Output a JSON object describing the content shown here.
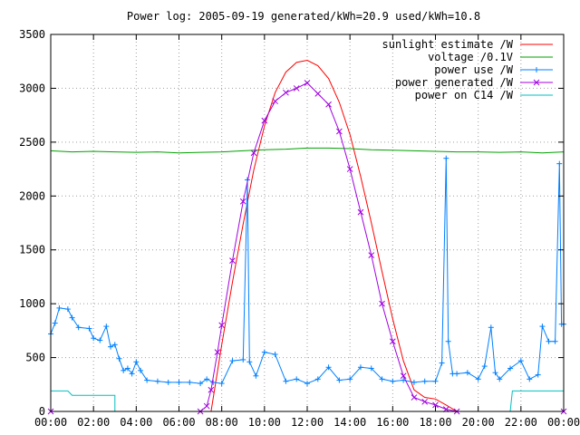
{
  "chart_data": {
    "type": "line",
    "title": "Power log: 2005-09-19 generated/kWh=20.9 used/kWh=10.8",
    "xlabel": "",
    "ylabel": "",
    "x_ticks": [
      "00:00",
      "02:00",
      "04:00",
      "06:00",
      "08:00",
      "10:00",
      "12:00",
      "14:00",
      "16:00",
      "18:00",
      "20:00",
      "22:00",
      "00:00"
    ],
    "xlim": [
      0,
      24
    ],
    "ylim": [
      0,
      3500
    ],
    "y_ticks": [
      0,
      500,
      1000,
      1500,
      2000,
      2500,
      3000,
      3500
    ],
    "grid": true,
    "legend_position": "top-right",
    "series": [
      {
        "name": "sunlight estimate /W",
        "color": "#ff0000",
        "style": "line",
        "points": [
          [
            7.5,
            0
          ],
          [
            8.0,
            620
          ],
          [
            8.5,
            1200
          ],
          [
            9.0,
            1740
          ],
          [
            9.5,
            2240
          ],
          [
            10.0,
            2650
          ],
          [
            10.5,
            2960
          ],
          [
            11.0,
            3150
          ],
          [
            11.5,
            3240
          ],
          [
            12.0,
            3260
          ],
          [
            12.5,
            3210
          ],
          [
            13.0,
            3090
          ],
          [
            13.5,
            2870
          ],
          [
            14.0,
            2570
          ],
          [
            14.5,
            2180
          ],
          [
            15.0,
            1750
          ],
          [
            15.5,
            1300
          ],
          [
            16.0,
            860
          ],
          [
            16.5,
            470
          ],
          [
            17.0,
            200
          ],
          [
            17.5,
            130
          ],
          [
            18.0,
            115
          ],
          [
            18.5,
            60
          ],
          [
            19.0,
            0
          ]
        ]
      },
      {
        "name": "voltage /0.1V",
        "color": "#00a000",
        "style": "line",
        "points": [
          [
            0.0,
            2420
          ],
          [
            1.0,
            2410
          ],
          [
            2.0,
            2415
          ],
          [
            3.0,
            2410
          ],
          [
            4.0,
            2405
          ],
          [
            5.0,
            2410
          ],
          [
            6.0,
            2400
          ],
          [
            7.0,
            2405
          ],
          [
            8.0,
            2410
          ],
          [
            9.0,
            2420
          ],
          [
            10.0,
            2430
          ],
          [
            11.0,
            2435
          ],
          [
            12.0,
            2445
          ],
          [
            13.0,
            2445
          ],
          [
            14.0,
            2440
          ],
          [
            15.0,
            2430
          ],
          [
            16.0,
            2425
          ],
          [
            17.0,
            2420
          ],
          [
            18.0,
            2415
          ],
          [
            19.0,
            2410
          ],
          [
            20.0,
            2410
          ],
          [
            21.0,
            2405
          ],
          [
            22.0,
            2410
          ],
          [
            23.0,
            2400
          ],
          [
            24.0,
            2410
          ]
        ]
      },
      {
        "name": "power use /W",
        "color": "#0080ff",
        "style": "linepoints-plus",
        "points": [
          [
            0.0,
            720
          ],
          [
            0.2,
            820
          ],
          [
            0.4,
            960
          ],
          [
            0.8,
            950
          ],
          [
            1.0,
            870
          ],
          [
            1.3,
            780
          ],
          [
            1.8,
            770
          ],
          [
            2.0,
            680
          ],
          [
            2.3,
            660
          ],
          [
            2.6,
            790
          ],
          [
            2.8,
            600
          ],
          [
            3.0,
            620
          ],
          [
            3.2,
            490
          ],
          [
            3.4,
            380
          ],
          [
            3.6,
            400
          ],
          [
            3.8,
            350
          ],
          [
            4.0,
            460
          ],
          [
            4.2,
            380
          ],
          [
            4.5,
            290
          ],
          [
            5.0,
            280
          ],
          [
            5.5,
            270
          ],
          [
            6.0,
            270
          ],
          [
            6.5,
            270
          ],
          [
            7.0,
            260
          ],
          [
            7.3,
            300
          ],
          [
            7.6,
            270
          ],
          [
            8.0,
            260
          ],
          [
            8.5,
            470
          ],
          [
            9.0,
            480
          ],
          [
            9.2,
            2150
          ],
          [
            9.3,
            460
          ],
          [
            9.6,
            330
          ],
          [
            10.0,
            550
          ],
          [
            10.5,
            530
          ],
          [
            11.0,
            280
          ],
          [
            11.5,
            300
          ],
          [
            12.0,
            260
          ],
          [
            12.5,
            300
          ],
          [
            13.0,
            410
          ],
          [
            13.5,
            290
          ],
          [
            14.0,
            300
          ],
          [
            14.5,
            410
          ],
          [
            15.0,
            400
          ],
          [
            15.5,
            300
          ],
          [
            16.0,
            280
          ],
          [
            16.5,
            290
          ],
          [
            17.0,
            270
          ],
          [
            17.5,
            280
          ],
          [
            18.0,
            280
          ],
          [
            18.3,
            450
          ],
          [
            18.5,
            2350
          ],
          [
            18.6,
            650
          ],
          [
            18.8,
            350
          ],
          [
            19.0,
            350
          ],
          [
            19.5,
            360
          ],
          [
            20.0,
            300
          ],
          [
            20.3,
            420
          ],
          [
            20.6,
            780
          ],
          [
            20.8,
            360
          ],
          [
            21.0,
            300
          ],
          [
            21.5,
            400
          ],
          [
            22.0,
            470
          ],
          [
            22.4,
            300
          ],
          [
            22.8,
            340
          ],
          [
            23.0,
            790
          ],
          [
            23.3,
            650
          ],
          [
            23.6,
            650
          ],
          [
            23.8,
            2300
          ],
          [
            23.9,
            810
          ],
          [
            24.0,
            810
          ]
        ]
      },
      {
        "name": "power generated /W",
        "color": "#a000e0",
        "style": "linepoints-x",
        "points": [
          [
            0.0,
            0
          ],
          [
            7.0,
            0
          ],
          [
            7.3,
            50
          ],
          [
            7.5,
            200
          ],
          [
            7.8,
            550
          ],
          [
            8.0,
            800
          ],
          [
            8.5,
            1400
          ],
          [
            9.0,
            1950
          ],
          [
            9.5,
            2400
          ],
          [
            10.0,
            2700
          ],
          [
            10.5,
            2880
          ],
          [
            11.0,
            2960
          ],
          [
            11.5,
            3000
          ],
          [
            12.0,
            3050
          ],
          [
            12.5,
            2950
          ],
          [
            13.0,
            2850
          ],
          [
            13.5,
            2600
          ],
          [
            14.0,
            2250
          ],
          [
            14.5,
            1850
          ],
          [
            15.0,
            1450
          ],
          [
            15.5,
            1000
          ],
          [
            16.0,
            650
          ],
          [
            16.5,
            330
          ],
          [
            17.0,
            130
          ],
          [
            17.5,
            90
          ],
          [
            18.0,
            60
          ],
          [
            18.5,
            20
          ],
          [
            19.0,
            0
          ],
          [
            24.0,
            0
          ]
        ]
      },
      {
        "name": "power on C14 /W",
        "color": "#00c0c0",
        "style": "line",
        "points": [
          [
            0.0,
            190
          ],
          [
            0.8,
            190
          ],
          [
            1.0,
            150
          ],
          [
            3.0,
            150
          ],
          [
            3.0,
            0
          ],
          [
            21.5,
            0
          ],
          [
            21.6,
            190
          ],
          [
            22.0,
            190
          ],
          [
            23.0,
            190
          ],
          [
            24.0,
            190
          ]
        ]
      }
    ]
  }
}
